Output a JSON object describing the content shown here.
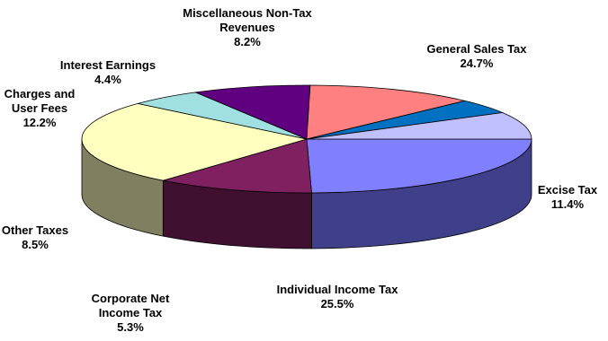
{
  "chart_data": {
    "type": "pie",
    "title": "",
    "slices": [
      {
        "label": "General Sales Tax",
        "value": 24.7,
        "pct_text": "24.7%",
        "color": "#8080ff",
        "side_color": "#40408a"
      },
      {
        "label": "Excise Tax",
        "value": 11.4,
        "pct_text": "11.4%",
        "color": "#7f2060",
        "side_color": "#3f1030"
      },
      {
        "label": "Individual Income Tax",
        "value": 25.5,
        "pct_text": "25.5%",
        "color": "#ffffc0",
        "side_color": "#808060"
      },
      {
        "label": "Corporate Net Income Tax",
        "value": 5.3,
        "pct_text": "5.3%",
        "color": "#a0e0e0",
        "side_color": "#507070"
      },
      {
        "label": "Other Taxes",
        "value": 8.5,
        "pct_text": "8.5%",
        "color": "#600080",
        "side_color": "#300040"
      },
      {
        "label": "Charges and User Fees",
        "value": 12.2,
        "pct_text": "12.2%",
        "color": "#ff8080",
        "side_color": "#804040"
      },
      {
        "label": "Interest Earnings",
        "value": 4.4,
        "pct_text": "4.4%",
        "color": "#0070c0",
        "side_color": "#003860"
      },
      {
        "label": "Miscellaneous Non-Tax Revenues",
        "value": 8.2,
        "pct_text": "8.2%",
        "color": "#c0c0ff",
        "side_color": "#606080"
      }
    ],
    "label_lines": [
      [
        "General Sales Tax"
      ],
      [
        "Excise Tax"
      ],
      [
        "Individual Income Tax"
      ],
      [
        "Corporate Net",
        "Income Tax"
      ],
      [
        "Other Taxes"
      ],
      [
        "Charges and",
        "User Fees"
      ],
      [
        "Interest Earnings"
      ],
      [
        "Miscellaneous Non-Tax",
        "Revenues"
      ]
    ],
    "start_position": "3 o'clock",
    "direction": "clockwise",
    "style": "3d"
  }
}
